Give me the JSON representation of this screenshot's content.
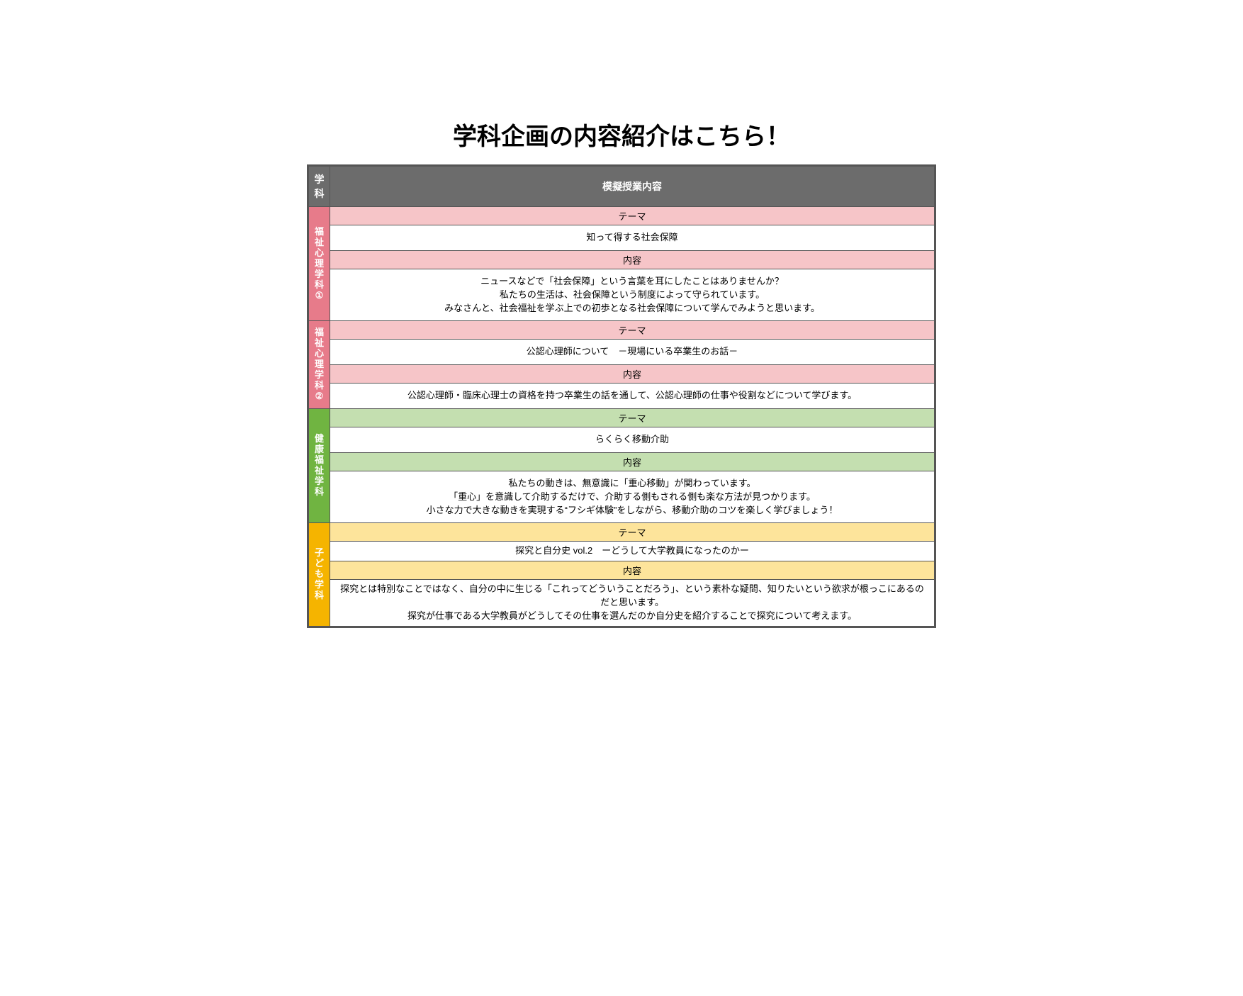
{
  "page": {
    "title": "学科企画の内容紹介はこちら！"
  },
  "header": {
    "dept_col": "学科",
    "content_col": "模擬授業内容",
    "bg": "#6c6c6c",
    "fg": "#ffffff"
  },
  "labels": {
    "theme": "テーマ",
    "content": "内容"
  },
  "colors": {
    "border": "#555555",
    "text": "#000000",
    "white": "#ffffff"
  },
  "sections": [
    {
      "dept_name": "福祉心理学科①",
      "dept_bg": "#e77b8a",
      "sub_bg": "#f6c5c8",
      "theme": "知って得する社会保障",
      "content": "ニュースなどで「社会保障」という言葉を耳にしたことはありませんか？\n私たちの生活は、社会保障という制度によって守られています。\nみなさんと、社会福祉を学ぶ上での初歩となる社会保障について学んでみようと思います。"
    },
    {
      "dept_name": "福祉心理学科②",
      "dept_bg": "#e77b8a",
      "sub_bg": "#f6c5c8",
      "theme": "公認心理師について　－現場にいる卒業生のお話－",
      "content": "公認心理師・臨床心理士の資格を持つ卒業生の話を通して、公認心理師の仕事や役割などについて学びます。"
    },
    {
      "dept_name": "健康福祉学科",
      "dept_bg": "#70b441",
      "sub_bg": "#c4dfb0",
      "theme": "らくらく移動介助",
      "content": "私たちの動きは、無意識に「重心移動」が関わっています。\n「重心」を意識して介助するだけで、介助する側もされる側も楽な方法が見つかります。\n小さな力で大きな動きを実現する“フシギ体験”をしながら、移動介助のコツを楽しく学びましょう！"
    },
    {
      "dept_name": "子ども学科",
      "dept_bg": "#f5b400",
      "sub_bg": "#fde49b",
      "theme": "探究と自分史 vol.2　ーどうして大学教員になったのかー",
      "content": "探究とは特別なことではなく、自分の中に生じる「これってどういうことだろう」、という素朴な疑問、知りたいという欲求が根っこにあるのだと思います。\n探究が仕事である大学教員がどうしてその仕事を選んだのか自分史を紹介することで探究について考えます。",
      "compact": true
    }
  ]
}
